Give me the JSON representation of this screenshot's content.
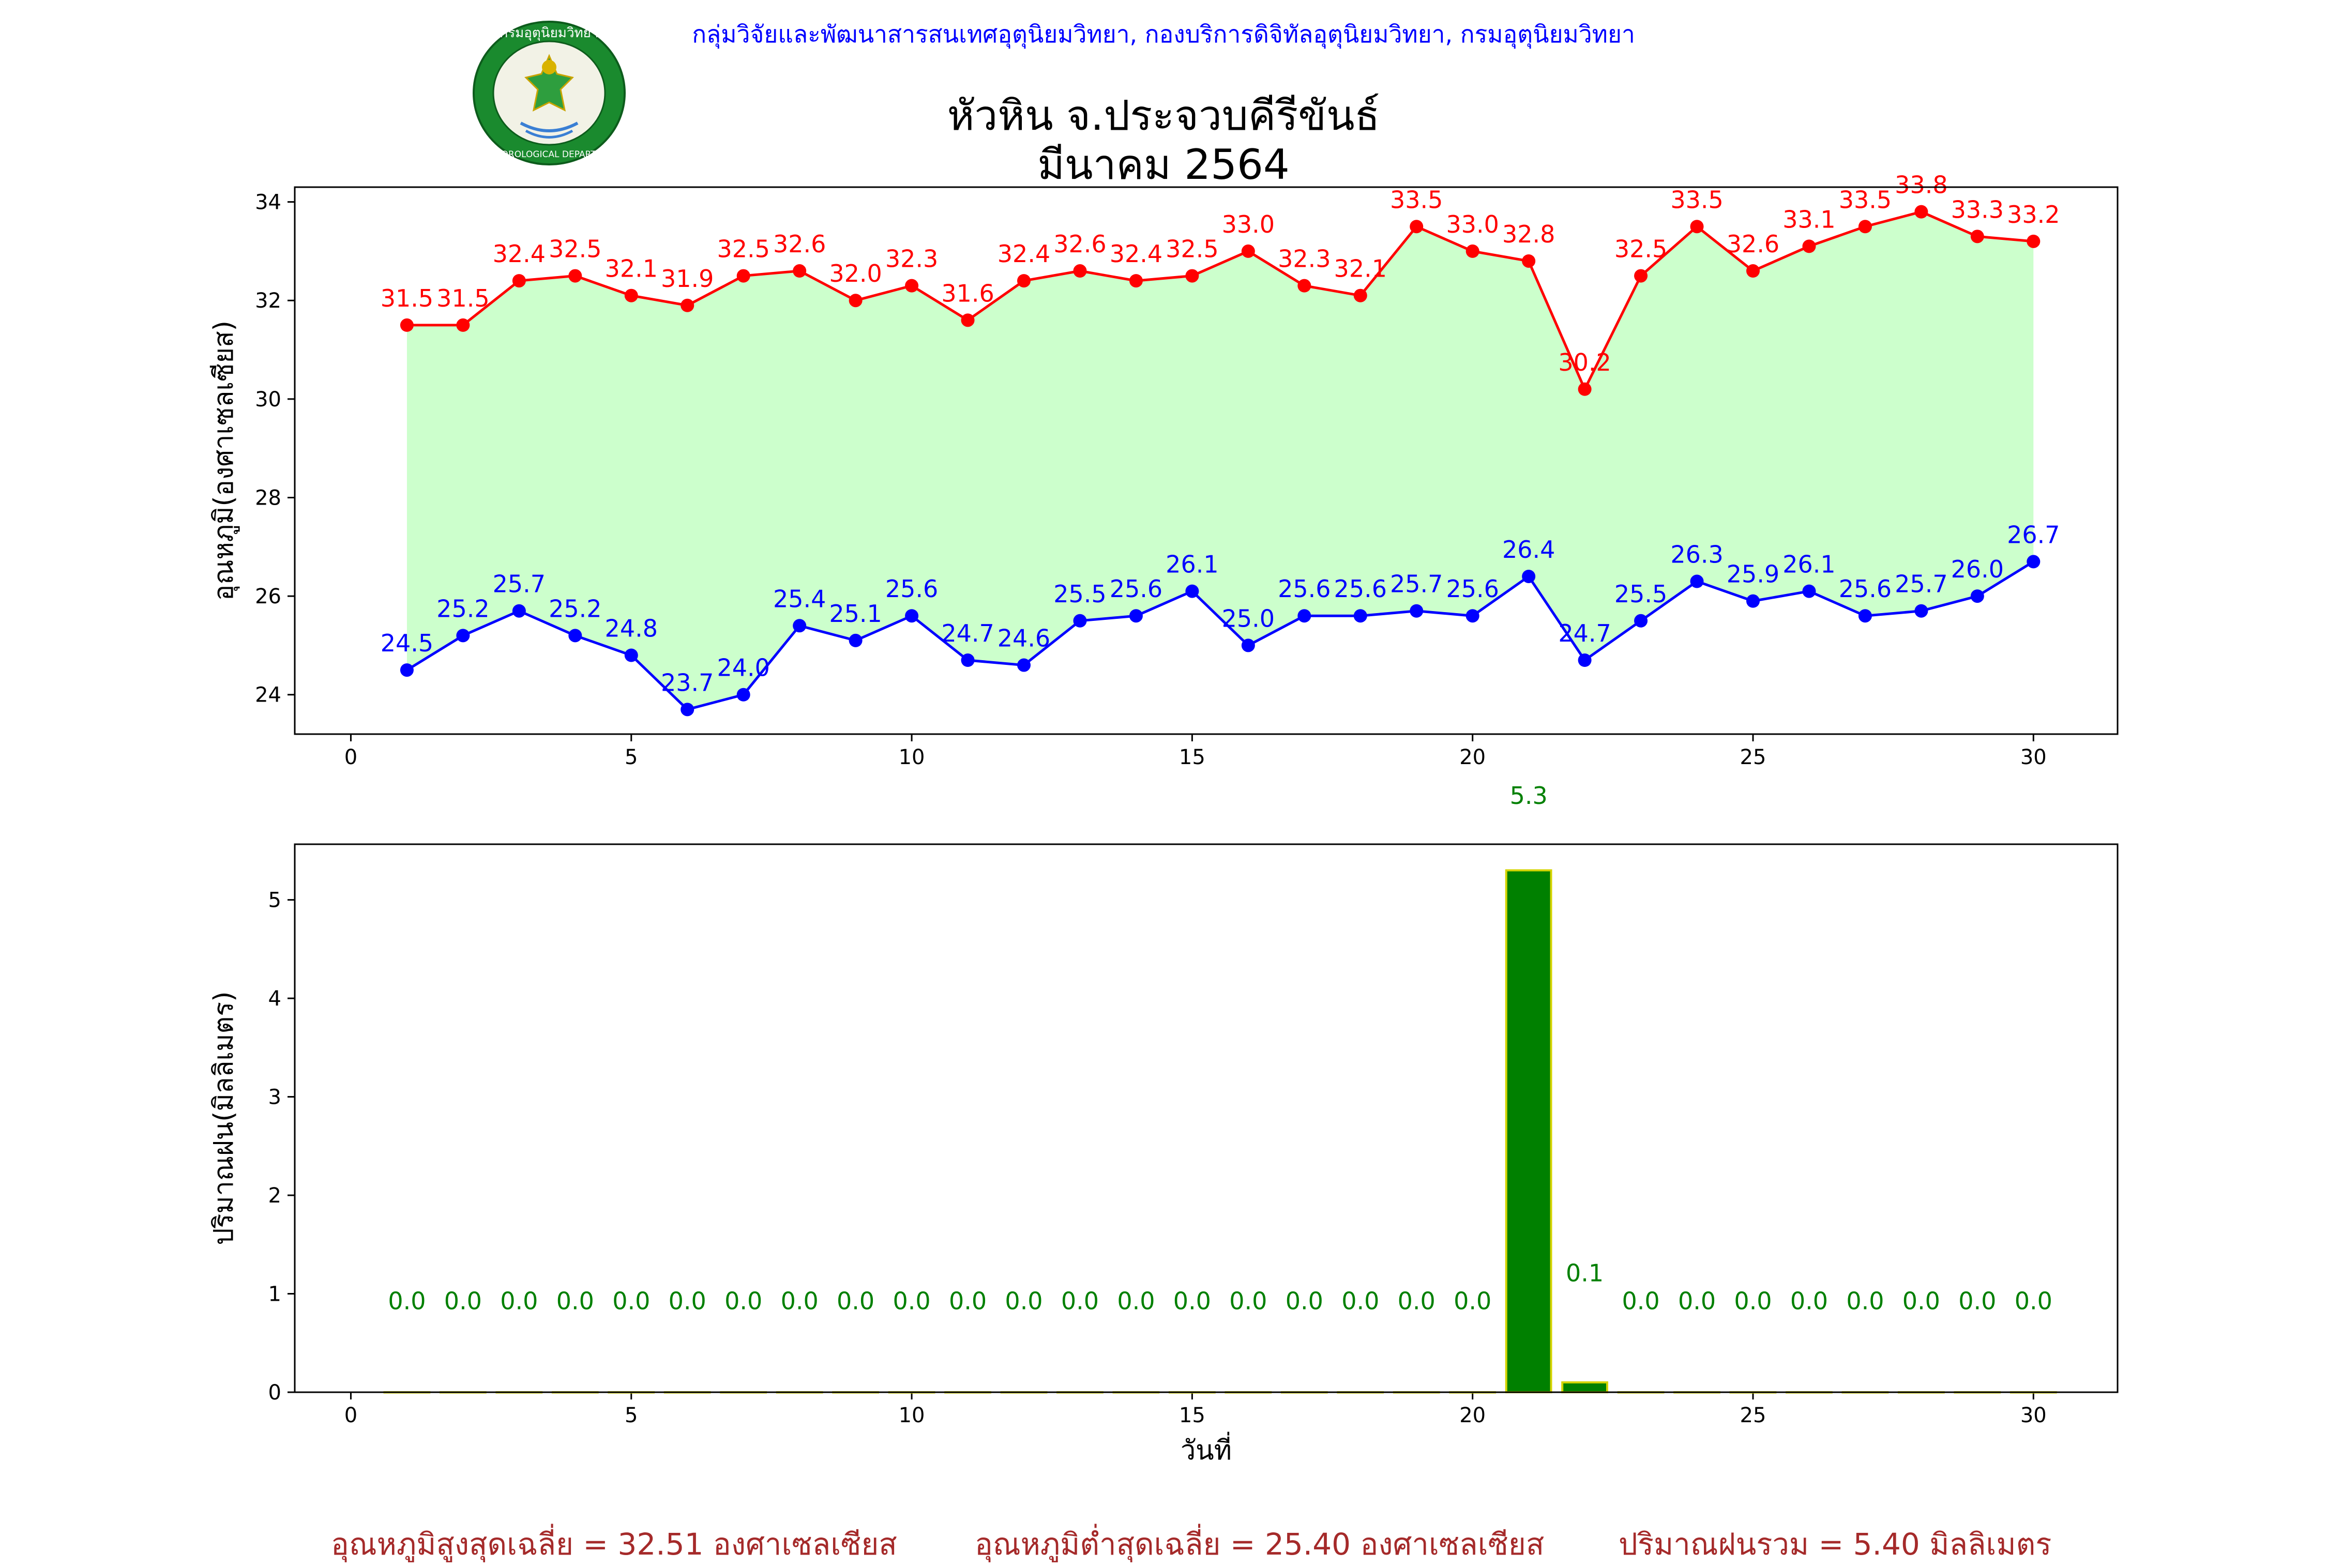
{
  "header": {
    "agency": "กลุ่มวิจัยและพัฒนาสารสนเทศอุตุนิยมวิทยา, กองบริการดิจิทัลอุตุนิยมวิทยา, กรมอุตุนิยมวิทยา",
    "station": "หัวหิน จ.ประจวบคีรีขันธ์",
    "period": "มีนาคม 2564",
    "logo_text_top": "กรมอุตุนิยมวิทยา",
    "logo_text_bottom": "METEOROLOGICAL DEPARTMENT"
  },
  "colors": {
    "max": "#ff0000",
    "min": "#0000ff",
    "fill": "#ccffcc",
    "rain_bar": "#008000",
    "rain_edge": "#d4d400",
    "rain_label": "#008000",
    "summary": "#a52a2a"
  },
  "chart_data": [
    {
      "type": "line",
      "ylabel": "อุณหภูมิ(องศาเซลเซียส)",
      "xlim": [
        -1,
        31.5
      ],
      "ylim": [
        23.2,
        34.3
      ],
      "xticks": [
        0,
        5,
        10,
        15,
        20,
        25,
        30
      ],
      "yticks": [
        24,
        26,
        28,
        30,
        32,
        34
      ],
      "x": [
        1,
        2,
        3,
        4,
        5,
        6,
        7,
        8,
        9,
        10,
        11,
        12,
        13,
        14,
        15,
        16,
        17,
        18,
        19,
        20,
        21,
        22,
        23,
        24,
        25,
        26,
        27,
        28,
        29,
        30
      ],
      "series": [
        {
          "key": "max",
          "values": [
            31.5,
            31.5,
            32.4,
            32.5,
            32.1,
            31.9,
            32.5,
            32.6,
            32.0,
            32.3,
            31.6,
            32.4,
            32.6,
            32.4,
            32.5,
            33.0,
            32.3,
            32.1,
            33.5,
            33.0,
            32.8,
            30.2,
            32.5,
            33.5,
            32.6,
            33.1,
            33.5,
            33.8,
            33.3,
            33.2
          ]
        },
        {
          "key": "min",
          "values": [
            24.5,
            25.2,
            25.7,
            25.2,
            24.8,
            23.7,
            24.0,
            25.4,
            25.1,
            25.6,
            24.7,
            24.6,
            25.5,
            25.6,
            26.1,
            25.0,
            25.6,
            25.6,
            25.7,
            25.6,
            26.4,
            24.7,
            25.5,
            26.3,
            25.9,
            26.1,
            25.6,
            25.7,
            26.0,
            26.7
          ]
        }
      ]
    },
    {
      "type": "bar",
      "ylabel": "ปริมาณฝน(มิลลิเมตร)",
      "xlabel": "วันที่",
      "xlim": [
        -1,
        31.5
      ],
      "ylim": [
        0,
        5.565
      ],
      "xticks": [
        0,
        5,
        10,
        15,
        20,
        25,
        30
      ],
      "yticks": [
        0,
        1,
        2,
        3,
        4,
        5
      ],
      "x": [
        1,
        2,
        3,
        4,
        5,
        6,
        7,
        8,
        9,
        10,
        11,
        12,
        13,
        14,
        15,
        16,
        17,
        18,
        19,
        20,
        21,
        22,
        23,
        24,
        25,
        26,
        27,
        28,
        29,
        30
      ],
      "values": [
        0.0,
        0.0,
        0.0,
        0.0,
        0.0,
        0.0,
        0.0,
        0.0,
        0.0,
        0.0,
        0.0,
        0.0,
        0.0,
        0.0,
        0.0,
        0.0,
        0.0,
        0.0,
        0.0,
        0.0,
        5.3,
        0.1,
        0.0,
        0.0,
        0.0,
        0.0,
        0.0,
        0.0,
        0.0,
        0.0
      ]
    }
  ],
  "summary": {
    "avg_max": "อุณหภูมิสูงสุดเฉลี่ย = 32.51 องศาเซลเซียส",
    "avg_min": "อุณหภูมิต่ำสุดเฉลี่ย = 25.40 องศาเซลเซียส",
    "total_rain": "ปริมาณฝนรวม = 5.40 มิลลิเมตร"
  }
}
